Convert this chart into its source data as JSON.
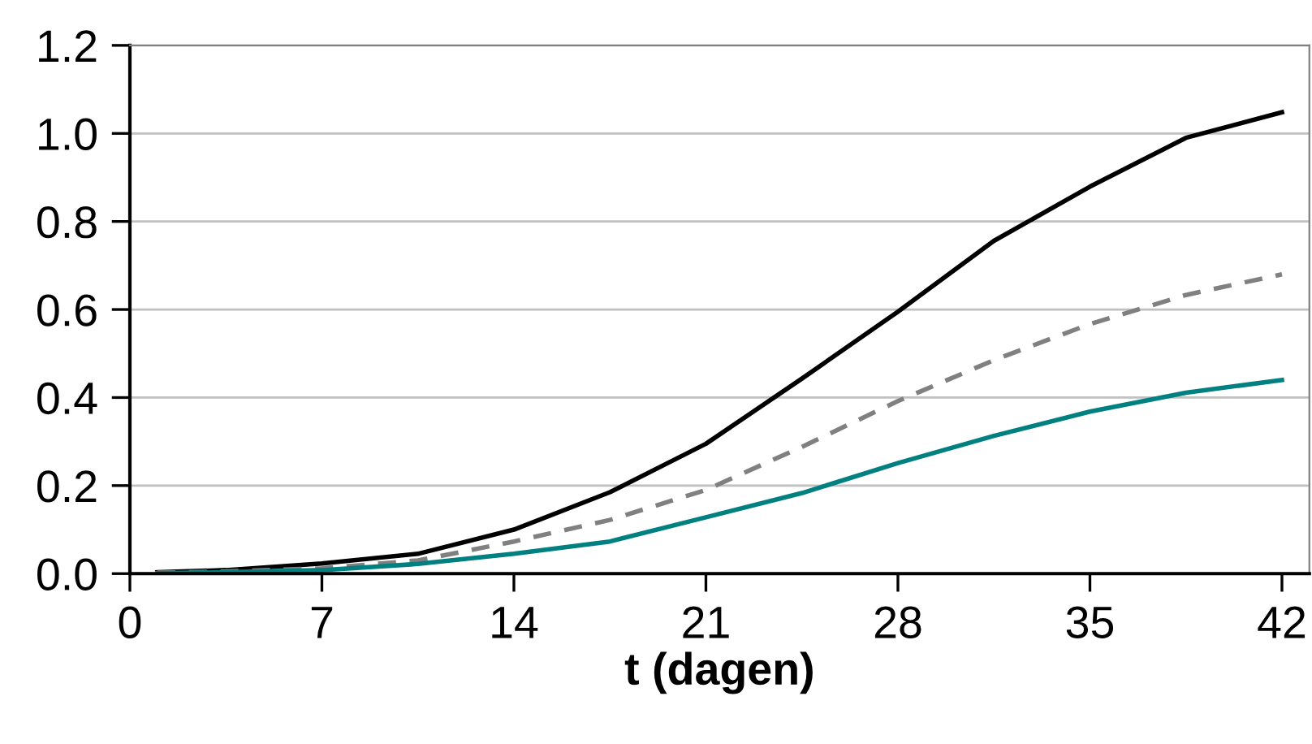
{
  "chart_data": {
    "type": "line",
    "xlabel": "t (dagen)",
    "xlim": [
      0,
      43
    ],
    "xticks": [
      0,
      7,
      14,
      21,
      28,
      35,
      42
    ],
    "ylim": [
      0,
      1.2
    ],
    "yticks": [
      {
        "value": 0,
        "label": "0.0"
      },
      0.2,
      0.4,
      0.6,
      0.8,
      {
        "value": 1,
        "label": "1.0"
      },
      1.2
    ],
    "grid": "y",
    "legend": false,
    "x": [
      1,
      3.5,
      7,
      10.5,
      14,
      17.5,
      21,
      24.5,
      28,
      31.5,
      35,
      38.5,
      42
    ],
    "series": [
      {
        "color": "#000000",
        "line_style": "solid",
        "values": [
          0.003,
          0.008,
          0.023,
          0.045,
          0.1,
          0.185,
          0.295,
          0.443,
          0.595,
          0.756,
          0.879,
          0.99,
          1.048
        ]
      },
      {
        "color": "#808080",
        "line_style": "dashed",
        "values": [
          0.002,
          0.005,
          0.012,
          0.03,
          0.073,
          0.122,
          0.19,
          0.288,
          0.392,
          0.485,
          0.567,
          0.633,
          0.68
        ]
      },
      {
        "color": "#008080",
        "line_style": "solid",
        "values": [
          0.001,
          0.003,
          0.008,
          0.022,
          0.045,
          0.073,
          0.128,
          0.183,
          0.251,
          0.313,
          0.368,
          0.411,
          0.44
        ]
      }
    ]
  }
}
